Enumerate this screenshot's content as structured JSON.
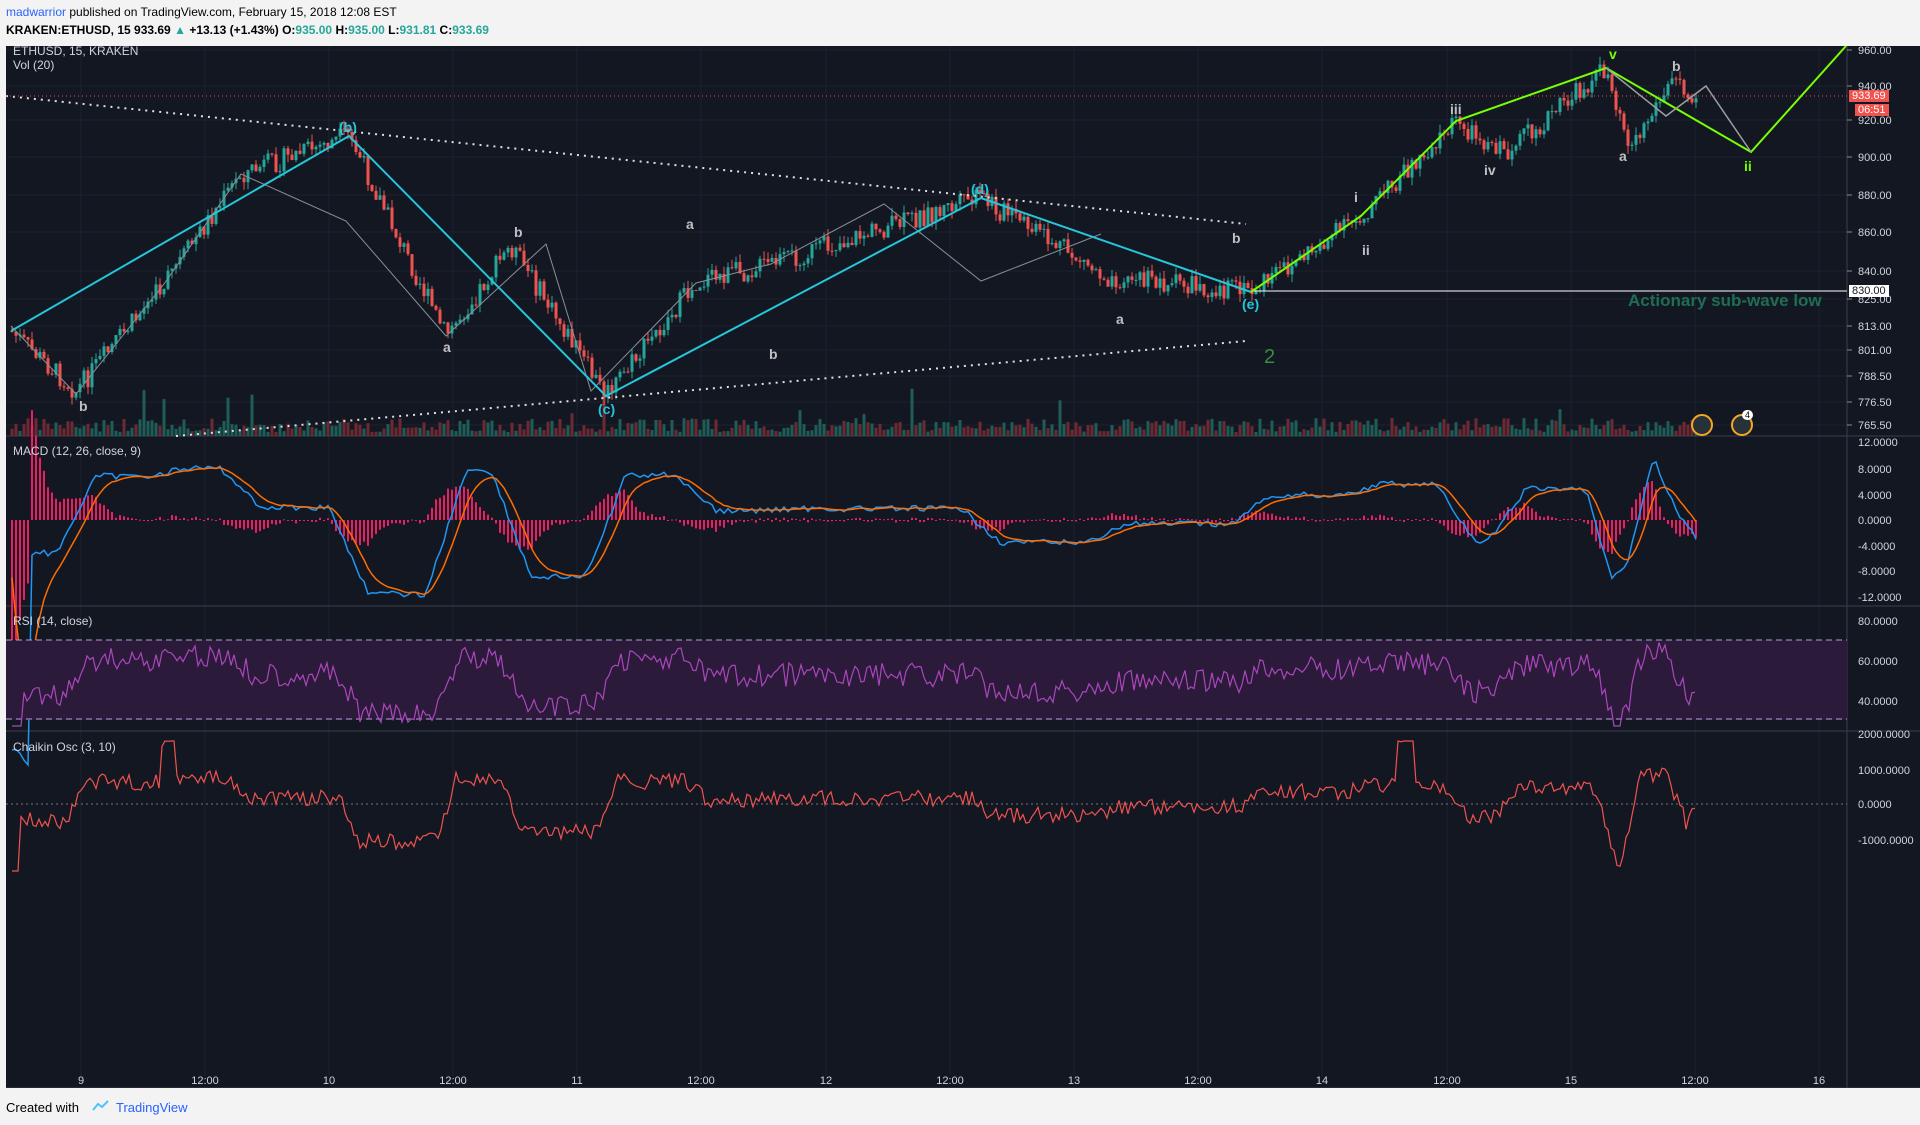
{
  "header": {
    "author": "madwarrior",
    "published_text": " published on TradingView.com, February 15, 2018 12:08 EST",
    "symbol": "KRAKEN:ETHUSD, 15",
    "price": "933.69",
    "change": "+13.13 (+1.43%)",
    "o_label": "O:",
    "o": "935.00",
    "h_label": "H:",
    "h": "935.00",
    "l_label": "L:",
    "l": "931.81",
    "c_label": "C:",
    "c": "933.69"
  },
  "main_pane": {
    "title": "ETHUSD, 15, KRAKEN",
    "volume_label": "Vol (20)",
    "price_badge": "933.69",
    "time_badge": "06:51",
    "level_badge": "830.00",
    "annotation": "Actionary sub-wave low",
    "count_label": "2",
    "flag_badge": "4",
    "price_ticks": [
      "960.00",
      "940.00",
      "920.00",
      "900.00",
      "880.00",
      "860.00",
      "840.00",
      "825.00",
      "813.00",
      "801.00",
      "788.50",
      "776.50",
      "765.50"
    ],
    "wave_labels": [
      "(b)",
      "(c)",
      "(d)",
      "(e)",
      "b",
      "a",
      "b",
      "a",
      "b",
      "a",
      "b",
      "i",
      "ii",
      "iii",
      "iv",
      "v",
      "a",
      "b",
      "ii"
    ]
  },
  "macd_pane": {
    "title": "MACD (12, 26, close, 9)",
    "ticks": [
      "12.0000",
      "8.0000",
      "4.0000",
      "0.0000",
      "-4.0000",
      "-8.0000",
      "-12.0000"
    ],
    "colors": {
      "macd": "#2196f3",
      "signal": "#ff6d00",
      "hist": "#e91e63"
    }
  },
  "rsi_pane": {
    "title": "RSI (14, close)",
    "ticks": [
      "80.0000",
      "60.0000",
      "40.0000"
    ],
    "colors": {
      "line": "#ab47bc",
      "band": "#3b2149"
    }
  },
  "chaikin_pane": {
    "title": "Chaikin Osc (3, 10)",
    "ticks": [
      "2000.0000",
      "1000.0000",
      "0.0000",
      "-1000.0000"
    ],
    "colors": {
      "line": "#ef5350"
    }
  },
  "time_axis": [
    "9",
    "12:00",
    "10",
    "12:00",
    "11",
    "12:00",
    "12",
    "12:00",
    "13",
    "12:00",
    "14",
    "12:00",
    "15",
    "12:00",
    "16"
  ],
  "footer": {
    "created_with": "Created with",
    "brand": "TradingView"
  },
  "colors": {
    "background": "#131722",
    "up_candle": "#26a69a",
    "down_candle": "#ef5350",
    "cyan_wave": "#26c6da",
    "green_wave": "#76ff03"
  }
}
